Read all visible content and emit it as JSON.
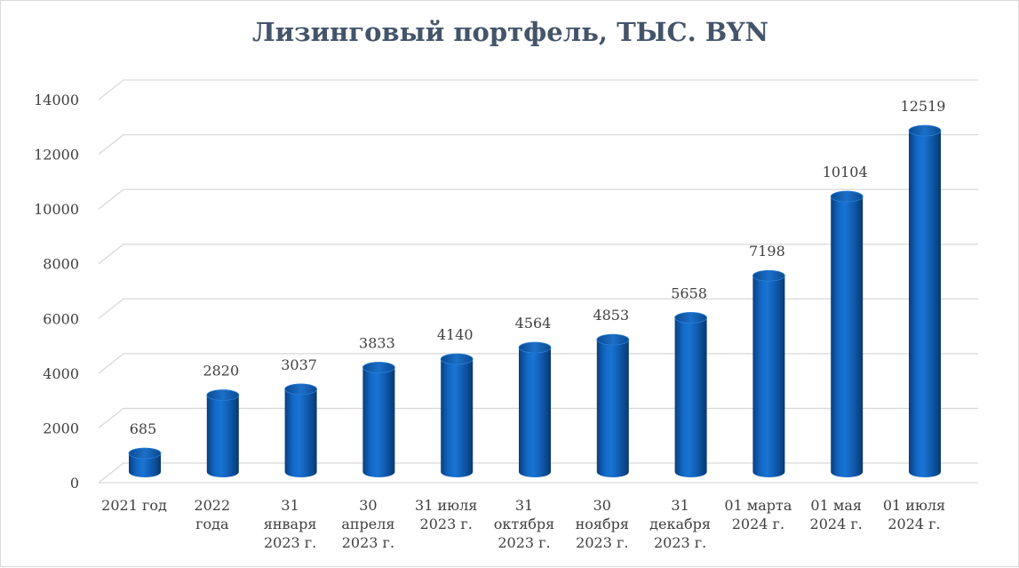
{
  "chart_data": {
    "type": "bar",
    "title": "Лизинговый портфель, ТЫС. BYN",
    "xlabel": "",
    "ylabel": "",
    "ylim": [
      0,
      14000
    ],
    "yticks": [
      0,
      2000,
      4000,
      6000,
      8000,
      10000,
      12000,
      14000
    ],
    "grid": true,
    "legend": "none",
    "style": "3d-cylinder",
    "bar_color": "#0f5db4",
    "categories": [
      [
        "2021 год"
      ],
      [
        "2022",
        "года"
      ],
      [
        "31",
        "января",
        "2023 г."
      ],
      [
        "30",
        "апреля",
        "2023 г."
      ],
      [
        "31 июля",
        "2023 г."
      ],
      [
        "31",
        "октября",
        "2023 г."
      ],
      [
        "30",
        "ноября",
        "2023 г."
      ],
      [
        "31",
        "декабря",
        "2023 г."
      ],
      [
        "01 марта",
        "2024 г."
      ],
      [
        "01 мая",
        "2024 г."
      ],
      [
        "01 июля",
        "2024 г."
      ]
    ],
    "values": [
      685,
      2820,
      3037,
      3833,
      4140,
      4564,
      4853,
      5658,
      7198,
      10104,
      12519
    ],
    "data_labels": [
      "685",
      "2820",
      "3037",
      "3833",
      "4140",
      "4564",
      "4853",
      "5658",
      "7198",
      "10104",
      "12519"
    ]
  }
}
